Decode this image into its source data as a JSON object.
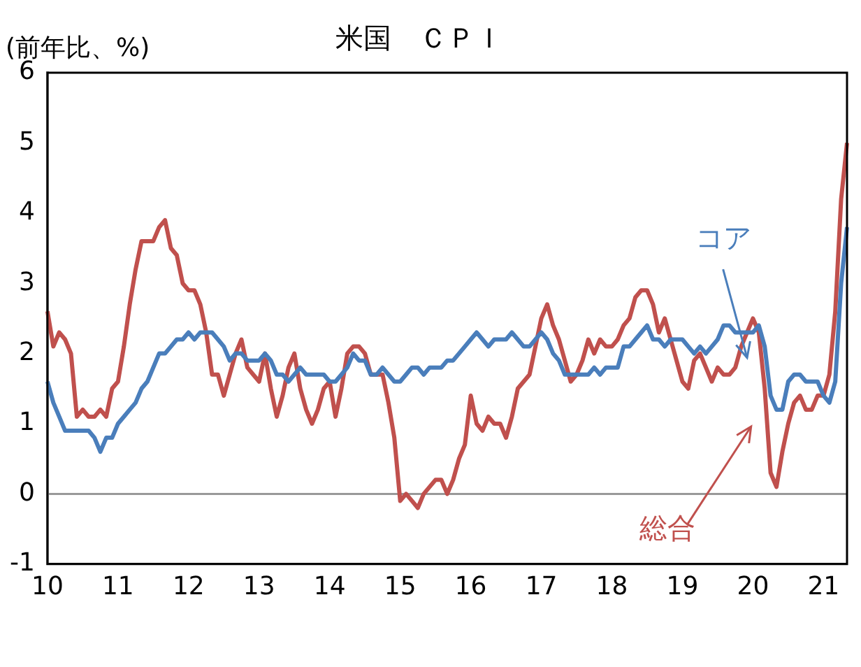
{
  "chart_data": {
    "type": "line",
    "title": "米国　ＣＰＩ",
    "ylabel": "(前年比、%)",
    "categories": [
      "10",
      null,
      null,
      null,
      null,
      null,
      null,
      null,
      null,
      null,
      null,
      null,
      "11",
      null,
      null,
      null,
      null,
      null,
      null,
      null,
      null,
      null,
      null,
      null,
      "12",
      null,
      null,
      null,
      null,
      null,
      null,
      null,
      null,
      null,
      null,
      null,
      "13",
      null,
      null,
      null,
      null,
      null,
      null,
      null,
      null,
      null,
      null,
      null,
      "14",
      null,
      null,
      null,
      null,
      null,
      null,
      null,
      null,
      null,
      null,
      null,
      "15",
      null,
      null,
      null,
      null,
      null,
      null,
      null,
      null,
      null,
      null,
      null,
      "16",
      null,
      null,
      null,
      null,
      null,
      null,
      null,
      null,
      null,
      null,
      null,
      "17",
      null,
      null,
      null,
      null,
      null,
      null,
      null,
      null,
      null,
      null,
      null,
      "18",
      null,
      null,
      null,
      null,
      null,
      null,
      null,
      null,
      null,
      null,
      null,
      "19",
      null,
      null,
      null,
      null,
      null,
      null,
      null,
      null,
      null,
      null,
      null,
      "20",
      null,
      null,
      null,
      null,
      null,
      null,
      null,
      null,
      null,
      null,
      null,
      "21",
      null,
      null,
      null,
      null
    ],
    "series": [
      {
        "name": "コア",
        "color": "#4a7ebb",
        "values": [
          1.6,
          1.3,
          1.1,
          0.9,
          0.9,
          0.9,
          0.9,
          0.9,
          0.8,
          0.6,
          0.8,
          0.8,
          1.0,
          1.1,
          1.2,
          1.3,
          1.5,
          1.6,
          1.8,
          2.0,
          2.0,
          2.1,
          2.2,
          2.2,
          2.3,
          2.2,
          2.3,
          2.3,
          2.3,
          2.2,
          2.1,
          1.9,
          2.0,
          2.0,
          1.9,
          1.9,
          1.9,
          2.0,
          1.9,
          1.7,
          1.7,
          1.6,
          1.7,
          1.8,
          1.7,
          1.7,
          1.7,
          1.7,
          1.6,
          1.6,
          1.7,
          1.8,
          2.0,
          1.9,
          1.9,
          1.7,
          1.7,
          1.8,
          1.7,
          1.6,
          1.6,
          1.7,
          1.8,
          1.8,
          1.7,
          1.8,
          1.8,
          1.8,
          1.9,
          1.9,
          2.0,
          2.1,
          2.2,
          2.3,
          2.2,
          2.1,
          2.2,
          2.2,
          2.2,
          2.3,
          2.2,
          2.1,
          2.1,
          2.2,
          2.3,
          2.2,
          2.0,
          1.9,
          1.7,
          1.7,
          1.7,
          1.7,
          1.7,
          1.8,
          1.7,
          1.8,
          1.8,
          1.8,
          2.1,
          2.1,
          2.2,
          2.3,
          2.4,
          2.2,
          2.2,
          2.1,
          2.2,
          2.2,
          2.2,
          2.1,
          2.0,
          2.1,
          2.0,
          2.1,
          2.2,
          2.4,
          2.4,
          2.3,
          2.3,
          2.3,
          2.3,
          2.4,
          2.1,
          1.4,
          1.2,
          1.2,
          1.6,
          1.7,
          1.7,
          1.6,
          1.6,
          1.6,
          1.4,
          1.3,
          1.6,
          3.0,
          3.8
        ]
      },
      {
        "name": "総合",
        "color": "#c0504d",
        "values": [
          2.6,
          2.1,
          2.3,
          2.2,
          2.0,
          1.1,
          1.2,
          1.1,
          1.1,
          1.2,
          1.1,
          1.5,
          1.6,
          2.1,
          2.7,
          3.2,
          3.6,
          3.6,
          3.6,
          3.8,
          3.9,
          3.5,
          3.4,
          3.0,
          2.9,
          2.9,
          2.7,
          2.3,
          1.7,
          1.7,
          1.4,
          1.7,
          2.0,
          2.2,
          1.8,
          1.7,
          1.6,
          2.0,
          1.5,
          1.1,
          1.4,
          1.8,
          2.0,
          1.5,
          1.2,
          1.0,
          1.2,
          1.5,
          1.6,
          1.1,
          1.5,
          2.0,
          2.1,
          2.1,
          2.0,
          1.7,
          1.7,
          1.7,
          1.3,
          0.8,
          -0.1,
          0.0,
          -0.1,
          -0.2,
          0.0,
          0.1,
          0.2,
          0.2,
          0.0,
          0.2,
          0.5,
          0.7,
          1.4,
          1.0,
          0.9,
          1.1,
          1.0,
          1.0,
          0.8,
          1.1,
          1.5,
          1.6,
          1.7,
          2.1,
          2.5,
          2.7,
          2.4,
          2.2,
          1.9,
          1.6,
          1.7,
          1.9,
          2.2,
          2.0,
          2.2,
          2.1,
          2.1,
          2.2,
          2.4,
          2.5,
          2.8,
          2.9,
          2.9,
          2.7,
          2.3,
          2.5,
          2.2,
          1.9,
          1.6,
          1.5,
          1.9,
          2.0,
          1.8,
          1.6,
          1.8,
          1.7,
          1.7,
          1.8,
          2.1,
          2.3,
          2.5,
          2.3,
          1.5,
          0.3,
          0.1,
          0.6,
          1.0,
          1.3,
          1.4,
          1.2,
          1.2,
          1.4,
          1.4,
          1.7,
          2.6,
          4.2,
          5.0
        ]
      }
    ],
    "ylim": [
      -1,
      6
    ],
    "yticks": [
      -1,
      0,
      1,
      2,
      3,
      4,
      5,
      6
    ],
    "grid": false,
    "legend": false,
    "ref_lines": [
      {
        "axis": "y",
        "value": 0,
        "color": "#999999"
      }
    ]
  }
}
